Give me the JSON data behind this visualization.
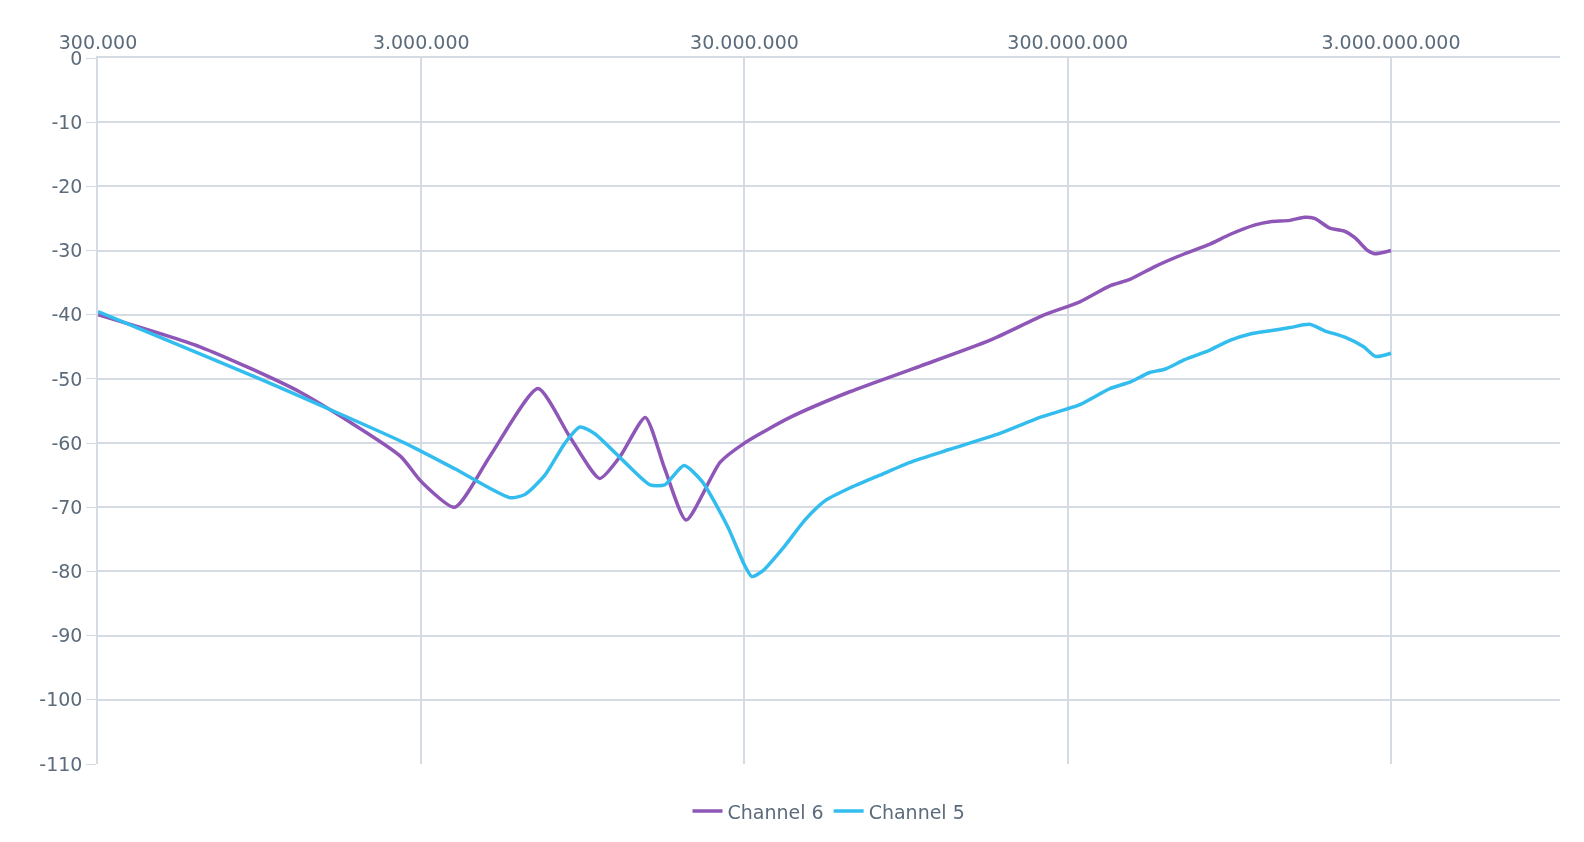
{
  "chart_data": {
    "type": "line",
    "log": "x",
    "grid": true,
    "legend": "bottom",
    "xlim": [
      300000,
      10000000000
    ],
    "xticks": [
      {
        "value": 300000,
        "label": "300.000"
      },
      {
        "value": 3000000,
        "label": "3.000.000"
      },
      {
        "value": 30000000,
        "label": "30.000.000"
      },
      {
        "value": 300000000,
        "label": "300.000.000"
      },
      {
        "value": 3000000000,
        "label": "3.000.000.000"
      }
    ],
    "ylim": [
      -110,
      0
    ],
    "yticks": [
      0,
      -10,
      -20,
      -30,
      -40,
      -50,
      -60,
      -70,
      -80,
      -90,
      -100,
      -110
    ],
    "series": [
      {
        "name": "Channel 6",
        "color": "#8e56b6",
        "x": [
          300000,
          620000,
          1260000,
          2580000,
          3000000,
          3810000,
          4900000,
          6890000,
          8640000,
          10700000,
          12400000,
          14800000,
          17000000,
          19800000,
          25200000,
          30000000,
          41500000,
          63500000,
          105000000,
          172000000,
          255000000,
          327000000,
          405000000,
          467000000,
          558000000,
          690000000,
          826000000,
          952000000,
          1140000000,
          1270000000,
          1460000000,
          1620000000,
          1740000000,
          1940000000,
          2160000000,
          2320000000,
          2540000000,
          2670000000,
          3000000000
        ],
        "values": [
          -40,
          -45,
          -52,
          -62,
          -66,
          -70,
          -62,
          -51.5,
          -59,
          -65.5,
          -62,
          -56,
          -64,
          -72,
          -63,
          -60,
          -56,
          -52,
          -48,
          -44,
          -40,
          -38,
          -35.5,
          -34.5,
          -32.5,
          -30.5,
          -29,
          -27.5,
          -26,
          -25.5,
          -25.3,
          -24.8,
          -25,
          -26.5,
          -27,
          -28,
          -30,
          -30.5,
          -30
        ]
      },
      {
        "name": "Channel 5",
        "color": "#33bdef",
        "x": [
          300000,
          950000,
          2670000,
          3810000,
          5640000,
          6280000,
          7240000,
          8350000,
          9290000,
          10300000,
          12800000,
          15300000,
          17000000,
          19500000,
          22200000,
          26600000,
          30000000,
          31600000,
          34000000,
          40000000,
          46100000,
          53200000,
          63500000,
          78700000,
          97500000,
          129000000,
          185000000,
          246000000,
          327000000,
          405000000,
          467000000,
          538000000,
          599000000,
          690000000,
          826000000,
          952000000,
          1100000000,
          1270000000,
          1460000000,
          1680000000,
          1870000000,
          2160000000,
          2470000000,
          2690000000,
          3000000000
        ],
        "values": [
          -39.5,
          -50,
          -60,
          -64,
          -68.5,
          -68,
          -65,
          -60,
          -57.5,
          -58.5,
          -63,
          -66.5,
          -66.5,
          -63.5,
          -66,
          -73,
          -79,
          -80.8,
          -80,
          -76,
          -72,
          -69,
          -67,
          -65,
          -63,
          -61,
          -58.5,
          -56,
          -54,
          -51.5,
          -50.5,
          -49,
          -48.5,
          -47,
          -45.5,
          -44,
          -43,
          -42.5,
          -42,
          -41.5,
          -42.5,
          -43.5,
          -45,
          -46.5,
          -46
        ]
      }
    ]
  }
}
